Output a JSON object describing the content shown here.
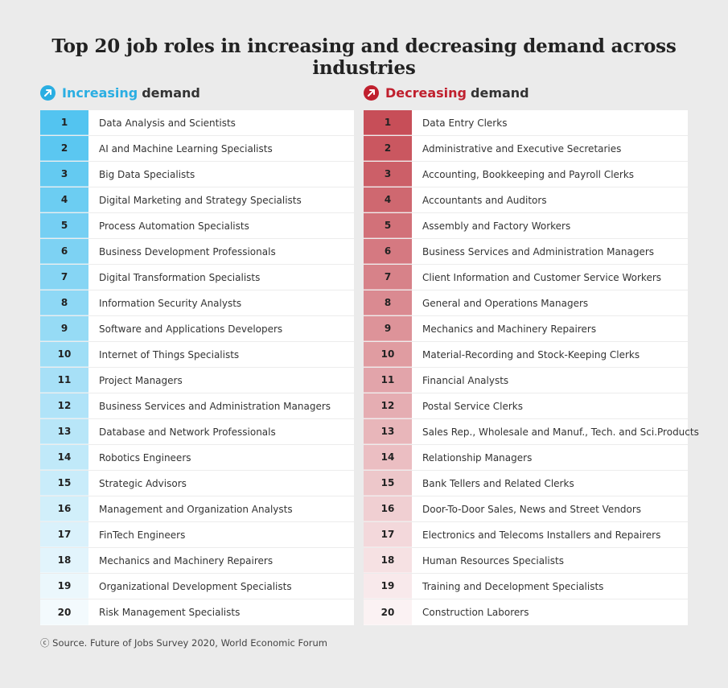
{
  "title": "Top 20 job roles in increasing and decreasing demand across industries",
  "colors": {
    "increasing_accent": "#2aaee2",
    "decreasing_accent": "#c0202e"
  },
  "chart_data": {
    "type": "table",
    "tables": [
      {
        "heading_highlight": "Increasing",
        "heading_rest": "demand",
        "icon": "arrow-up-right-icon",
        "rows": [
          {
            "rank": "1",
            "role": "Data Analysis and Scientists"
          },
          {
            "rank": "2",
            "role": "AI and Machine Learning Specialists"
          },
          {
            "rank": "3",
            "role": "Big Data Specialists"
          },
          {
            "rank": "4",
            "role": "Digital Marketing and Strategy Specialists"
          },
          {
            "rank": "5",
            "role": "Process Automation Specialists"
          },
          {
            "rank": "6",
            "role": "Business Development Professionals"
          },
          {
            "rank": "7",
            "role": "Digital Transformation Specialists"
          },
          {
            "rank": "8",
            "role": "Information Security Analysts"
          },
          {
            "rank": "9",
            "role": "Software and Applications Developers"
          },
          {
            "rank": "10",
            "role": "Internet of Things Specialists"
          },
          {
            "rank": "11",
            "role": "Project Managers"
          },
          {
            "rank": "12",
            "role": "Business Services and Administration Managers"
          },
          {
            "rank": "13",
            "role": "Database and Network Professionals"
          },
          {
            "rank": "14",
            "role": "Robotics Engineers"
          },
          {
            "rank": "15",
            "role": "Strategic Advisors"
          },
          {
            "rank": "16",
            "role": "Management and Organization Analysts"
          },
          {
            "rank": "17",
            "role": "FinTech Engineers"
          },
          {
            "rank": "18",
            "role": "Mechanics and Machinery Repairers"
          },
          {
            "rank": "19",
            "role": "Organizational Development Specialists"
          },
          {
            "rank": "20",
            "role": "Risk Management Specialists"
          }
        ]
      },
      {
        "heading_highlight": "Decreasing",
        "heading_rest": "demand",
        "icon": "arrow-up-right-icon",
        "rows": [
          {
            "rank": "1",
            "role": "Data Entry Clerks"
          },
          {
            "rank": "2",
            "role": "Administrative and Executive Secretaries"
          },
          {
            "rank": "3",
            "role": "Accounting, Bookkeeping and Payroll Clerks"
          },
          {
            "rank": "4",
            "role": "Accountants and Auditors"
          },
          {
            "rank": "5",
            "role": "Assembly and Factory Workers"
          },
          {
            "rank": "6",
            "role": "Business Services and Administration Managers"
          },
          {
            "rank": "7",
            "role": "Client Information and Customer Service Workers"
          },
          {
            "rank": "8",
            "role": "General and Operations Managers"
          },
          {
            "rank": "9",
            "role": "Mechanics and Machinery Repairers"
          },
          {
            "rank": "10",
            "role": "Material-Recording and Stock-Keeping Clerks"
          },
          {
            "rank": "11",
            "role": "Financial Analysts"
          },
          {
            "rank": "12",
            "role": "Postal Service Clerks"
          },
          {
            "rank": "13",
            "role": "Sales Rep., Wholesale and Manuf., Tech. and Sci.Products"
          },
          {
            "rank": "14",
            "role": "Relationship Managers"
          },
          {
            "rank": "15",
            "role": "Bank Tellers and Related Clerks"
          },
          {
            "rank": "16",
            "role": "Door-To-Door Sales, News and Street Vendors"
          },
          {
            "rank": "17",
            "role": "Electronics and Telecoms Installers and Repairers"
          },
          {
            "rank": "18",
            "role": "Human Resources Specialists"
          },
          {
            "rank": "19",
            "role": "Training and Decelopment Specialists"
          },
          {
            "rank": "20",
            "role": "Construction Laborers"
          }
        ]
      }
    ]
  },
  "source": "ⓒ Source. Future of Jobs Survey 2020, World Economic Forum"
}
